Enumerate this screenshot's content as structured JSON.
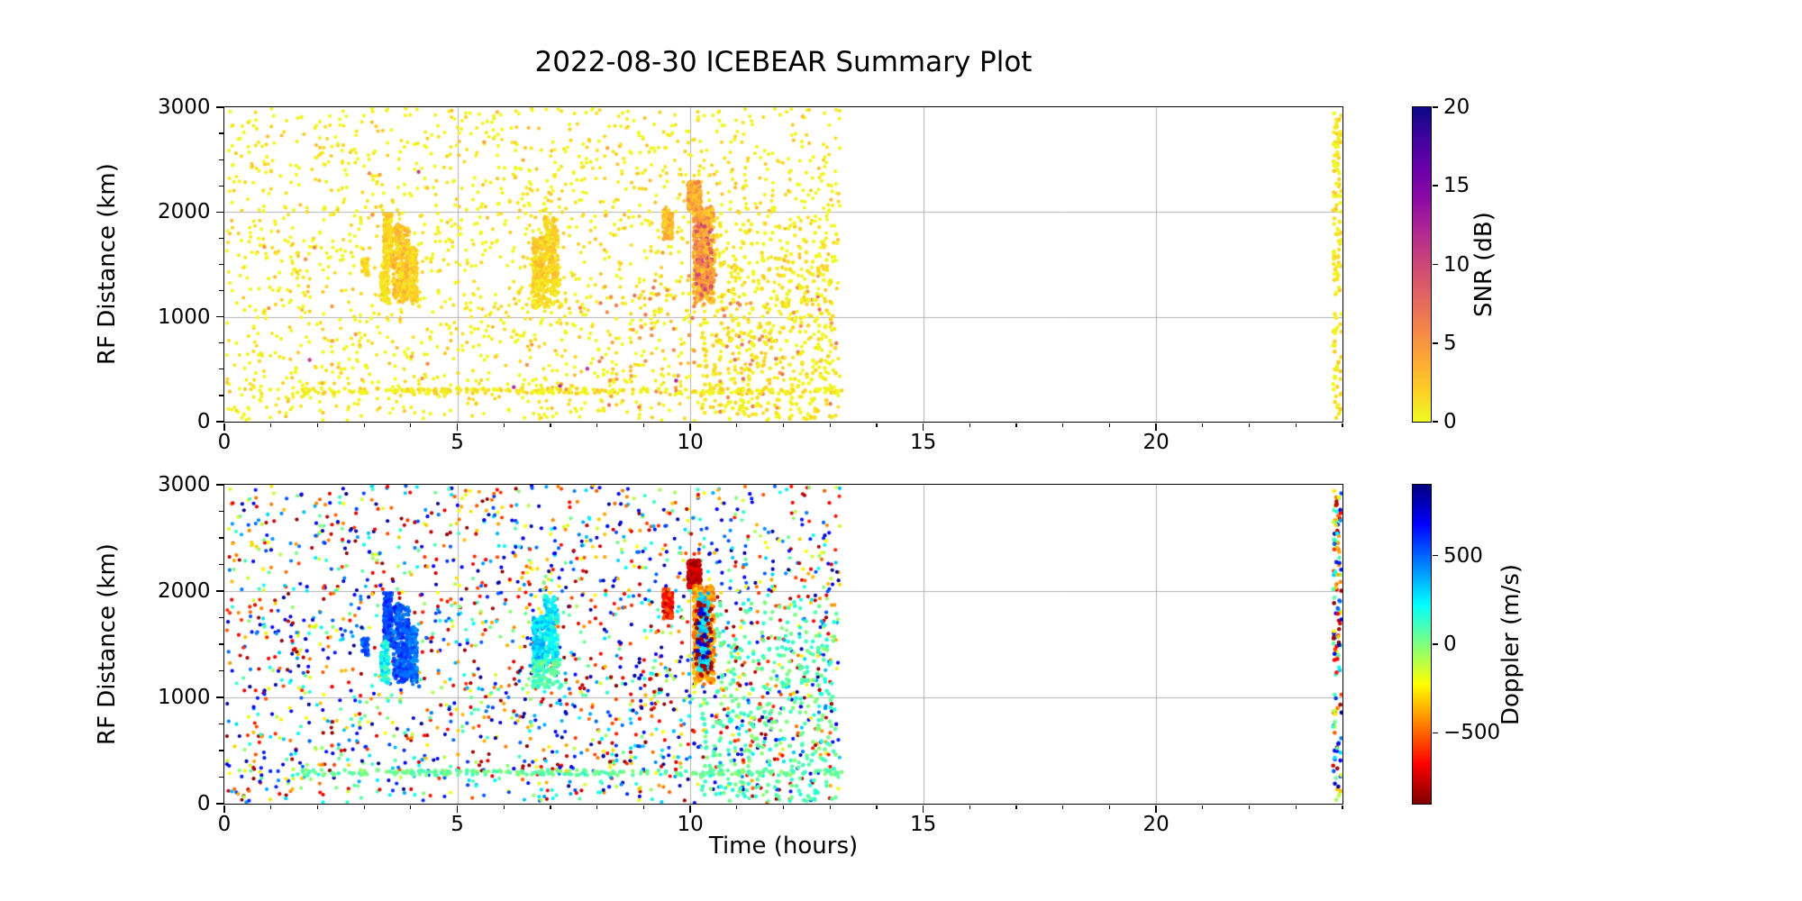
{
  "title": "2022-08-30 ICEBEAR Summary Plot",
  "chart_data": {
    "type": "scatter",
    "title": "2022-08-30 ICEBEAR Summary Plot",
    "xlabel": "Time (hours)",
    "ylabel": "RF Distance (km)",
    "grid": true,
    "grid_color": "#b0b0b0",
    "background_color": "#ffffff",
    "x_axis": {
      "range": [
        0,
        24
      ],
      "major_ticks": [
        0,
        5,
        10,
        15,
        20
      ],
      "tick_labels": [
        "0",
        "5",
        "10",
        "15",
        "20"
      ],
      "minor_step": 1
    },
    "y_axis": {
      "range": [
        0,
        3000
      ],
      "major_ticks": [
        0,
        1000,
        2000,
        3000
      ],
      "tick_labels": [
        "0",
        "1000",
        "2000",
        "3000"
      ],
      "minor_step": 250
    },
    "panels": [
      {
        "name": "snr-panel",
        "color_by": "snr",
        "colorbar": {
          "label": "SNR (dB)",
          "vmin": 0,
          "vmax": 20,
          "ticks": [
            0,
            5,
            10,
            15,
            20
          ],
          "tick_labels": [
            "0",
            "5",
            "10",
            "15",
            "20"
          ],
          "colormap": "plasma_r"
        }
      },
      {
        "name": "doppler-panel",
        "color_by": "doppler",
        "colorbar": {
          "label": "Doppler (m/s)",
          "vmin": -900,
          "vmax": 900,
          "ticks": [
            500,
            0,
            -500
          ],
          "tick_labels": [
            "500",
            "0",
            "−500"
          ],
          "colormap": "jet_r"
        }
      }
    ],
    "colormaps": {
      "plasma_r": [
        [
          0,
          "#f0f921"
        ],
        [
          0.1,
          "#fcce25"
        ],
        [
          0.2,
          "#fca636"
        ],
        [
          0.3,
          "#f2844b"
        ],
        [
          0.4,
          "#e16462"
        ],
        [
          0.5,
          "#cc4778"
        ],
        [
          0.6,
          "#b12a90"
        ],
        [
          0.7,
          "#8f0da4"
        ],
        [
          0.8,
          "#6a00a8"
        ],
        [
          0.9,
          "#41049d"
        ],
        [
          1,
          "#0d0887"
        ]
      ],
      "jet_r": [
        [
          0,
          "#7f0000"
        ],
        [
          0.125,
          "#ff0000"
        ],
        [
          0.375,
          "#ffff00"
        ],
        [
          0.625,
          "#00ffff"
        ],
        [
          0.875,
          "#0000ff"
        ],
        [
          1,
          "#00007f"
        ]
      ]
    },
    "scatter_data": {
      "seed": 20220830,
      "data_time_extent_hours": [
        0,
        13.2
      ],
      "edge_strip_time_hours": 23.9,
      "populations": [
        {
          "name": "background-echoes",
          "n": 2100,
          "t": [
            0.05,
            13.25
          ],
          "rf": [
            5,
            2995
          ],
          "snr": [
            0,
            3
          ],
          "snr_skew": 3,
          "doppler": [
            -900,
            900
          ],
          "r": 2.1
        },
        {
          "name": "strong-snr-sprinkle-late",
          "n": 85,
          "t": [
            8,
            13.2
          ],
          "rf": [
            80,
            1400
          ],
          "snr": [
            4,
            7.5
          ],
          "doppler": [
            -900,
            900
          ],
          "r": 2.2
        },
        {
          "name": "strong-snr-sprinkle-early",
          "n": 28,
          "t": [
            0.3,
            9.5
          ],
          "rf": [
            150,
            2700
          ],
          "snr": [
            3.5,
            6
          ],
          "doppler": [
            -900,
            900
          ],
          "r": 2.2
        },
        {
          "name": "rare-very-strong",
          "n": 6,
          "t": [
            0.5,
            12.8
          ],
          "rf": [
            300,
            2400
          ],
          "snr": [
            8,
            13
          ],
          "doppler": [
            -900,
            900
          ],
          "r": 2.2
        },
        {
          "name": "range-band-300km",
          "n": 230,
          "t": [
            1.5,
            13.25
          ],
          "rf": [
            265,
            318
          ],
          "snr": [
            0,
            2.5
          ],
          "snr_skew": 2,
          "doppler": [
            -40,
            130
          ],
          "r": 2.3
        },
        {
          "name": "low-doppler-green-patch",
          "n": 380,
          "t": [
            10.2,
            13.15
          ],
          "rf": [
            20,
            1900
          ],
          "snr": [
            0,
            2
          ],
          "snr_skew": 2,
          "doppler": [
            -30,
            170
          ],
          "r": 2.35
        },
        {
          "name": "edge-strip-24h",
          "n": 135,
          "t": [
            23.8,
            23.98
          ],
          "rf": [
            10,
            2990
          ],
          "snr": [
            0,
            2.5
          ],
          "snr_skew": 2,
          "doppler": [
            -900,
            900
          ],
          "r": 2.3
        }
      ],
      "streak_clusters": [
        {
          "name": "pre-streak-3h",
          "n": 30,
          "t": [
            2.95,
            3.1
          ],
          "rf": [
            1380,
            1560
          ],
          "snr": [
            0.5,
            2.5
          ],
          "doppler": [
            430,
            600
          ]
        },
        {
          "name": "blue-streak-A1",
          "n": 150,
          "t": [
            3.42,
            3.6
          ],
          "rf": [
            1480,
            1980
          ],
          "snr": [
            0.5,
            3
          ],
          "doppler": [
            450,
            650
          ]
        },
        {
          "name": "green-streak-A2",
          "n": 90,
          "t": [
            3.36,
            3.54
          ],
          "rf": [
            1130,
            1530
          ],
          "snr": [
            0.3,
            2
          ],
          "doppler": [
            60,
            330
          ]
        },
        {
          "name": "blue-streak-A3",
          "n": 260,
          "t": [
            3.62,
            3.97
          ],
          "rf": [
            1140,
            1880
          ],
          "snr": [
            0.5,
            4
          ],
          "doppler": [
            420,
            630
          ]
        },
        {
          "name": "blue-streak-A4",
          "n": 120,
          "t": [
            3.97,
            4.14
          ],
          "rf": [
            1150,
            1660
          ],
          "snr": [
            0.5,
            3
          ],
          "doppler": [
            370,
            560
          ]
        },
        {
          "name": "cyan-streak-B1",
          "n": 160,
          "t": [
            6.62,
            6.87
          ],
          "rf": [
            1250,
            1760
          ],
          "snr": [
            0.5,
            3.5
          ],
          "doppler": [
            170,
            420
          ]
        },
        {
          "name": "cyan-streak-B2",
          "n": 170,
          "t": [
            6.87,
            7.16
          ],
          "rf": [
            1300,
            1950
          ],
          "snr": [
            0.5,
            3
          ],
          "doppler": [
            110,
            380
          ]
        },
        {
          "name": "green-streak-B3",
          "n": 85,
          "t": [
            6.6,
            7.25
          ],
          "rf": [
            1090,
            1360
          ],
          "snr": [
            0.3,
            2
          ],
          "doppler": [
            -10,
            160
          ]
        },
        {
          "name": "darkred-streak-C",
          "n": 115,
          "t": [
            9.42,
            9.62
          ],
          "rf": [
            1740,
            2020
          ],
          "snr": [
            1,
            4.5
          ],
          "doppler": [
            -850,
            -470
          ]
        },
        {
          "name": "darkred-blob-D",
          "n": 175,
          "t": [
            9.95,
            10.23
          ],
          "rf": [
            2030,
            2290
          ],
          "snr": [
            2,
            6.5
          ],
          "doppler": [
            -880,
            -690
          ]
        },
        {
          "name": "orange-streak-E1",
          "n": 420,
          "t": [
            10.07,
            10.52
          ],
          "rf": [
            1120,
            2050
          ],
          "snr": [
            1.5,
            6
          ],
          "doppler": [
            -520,
            -290
          ]
        },
        {
          "name": "cyan-core-E2",
          "n": 140,
          "t": [
            10.17,
            10.4
          ],
          "rf": [
            1250,
            1980
          ],
          "snr": [
            2,
            7
          ],
          "doppler": [
            190,
            400
          ]
        },
        {
          "name": "extreme-core-E3",
          "n": 55,
          "t": [
            10.1,
            10.47
          ],
          "rf": [
            1200,
            1900
          ],
          "snr": [
            6,
            11
          ],
          "doppler": [
            -900,
            -780
          ]
        },
        {
          "name": "blue-specks-E4",
          "n": 22,
          "t": [
            10.15,
            10.45
          ],
          "rf": [
            1350,
            1850
          ],
          "snr": [
            3,
            7
          ],
          "doppler": [
            680,
            880
          ]
        }
      ]
    }
  }
}
